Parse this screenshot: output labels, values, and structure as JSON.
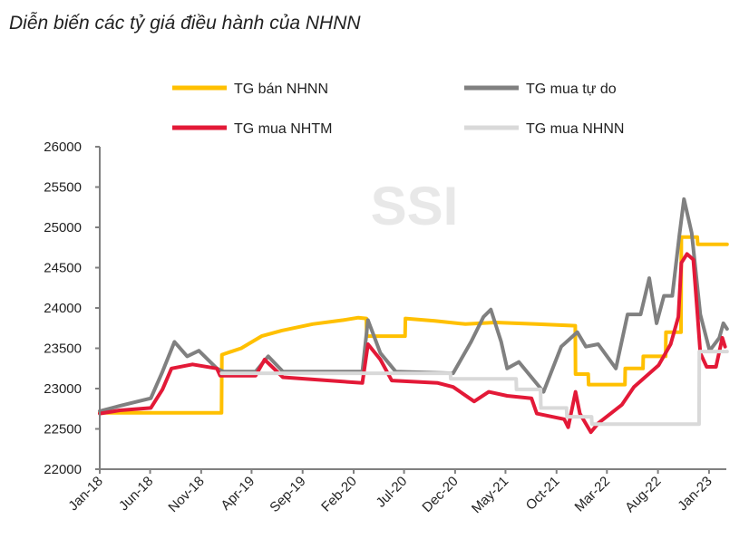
{
  "chart_data": {
    "type": "line",
    "title": "Diễn biến các tỷ giá điều hành của NHNN",
    "watermark": "SSI",
    "xlabel": "",
    "ylabel": "",
    "ylim": [
      22000,
      26000
    ],
    "yticks": [
      22000,
      22500,
      23000,
      23500,
      24000,
      24500,
      25000,
      25500,
      26000
    ],
    "xlim": [
      "2018-01-01",
      "2023-02-24"
    ],
    "xticks": [
      {
        "date": "2018-01-01",
        "label": "Jan-18"
      },
      {
        "date": "2018-06-01",
        "label": "Jun-18"
      },
      {
        "date": "2018-11-01",
        "label": "Nov-18"
      },
      {
        "date": "2019-04-01",
        "label": "Apr-19"
      },
      {
        "date": "2019-09-01",
        "label": "Sep-19"
      },
      {
        "date": "2020-02-01",
        "label": "Feb-20"
      },
      {
        "date": "2020-07-01",
        "label": "Jul-20"
      },
      {
        "date": "2020-12-01",
        "label": "Dec-20"
      },
      {
        "date": "2021-05-01",
        "label": "May-21"
      },
      {
        "date": "2021-10-01",
        "label": "Oct-21"
      },
      {
        "date": "2022-03-01",
        "label": "Mar-22"
      },
      {
        "date": "2022-08-01",
        "label": "Aug-22"
      },
      {
        "date": "2023-01-01",
        "label": "Jan-23"
      }
    ],
    "grid": false,
    "legend_placement": "top",
    "series": [
      {
        "name": "TG bán NHNN",
        "color": "#FFC000",
        "points": [
          [
            "2018-01-01",
            22700
          ],
          [
            "2019-01-01",
            22700
          ],
          [
            "2019-01-02",
            23420
          ],
          [
            "2019-03-01",
            23500
          ],
          [
            "2019-05-01",
            23650
          ],
          [
            "2019-07-01",
            23720
          ],
          [
            "2019-10-01",
            23800
          ],
          [
            "2020-01-01",
            23850
          ],
          [
            "2020-02-15",
            23880
          ],
          [
            "2020-03-10",
            23870
          ],
          [
            "2020-03-11",
            23650
          ],
          [
            "2020-07-04",
            23650
          ],
          [
            "2020-07-05",
            23870
          ],
          [
            "2020-10-01",
            23840
          ],
          [
            "2021-01-01",
            23800
          ],
          [
            "2021-04-01",
            23820
          ],
          [
            "2021-08-01",
            23800
          ],
          [
            "2021-11-26",
            23780
          ],
          [
            "2021-11-27",
            23180
          ],
          [
            "2022-01-04",
            23180
          ],
          [
            "2022-01-05",
            23050
          ],
          [
            "2022-04-24",
            23050
          ],
          [
            "2022-04-25",
            23250
          ],
          [
            "2022-06-17",
            23250
          ],
          [
            "2022-06-18",
            23400
          ],
          [
            "2022-08-24",
            23400
          ],
          [
            "2022-08-25",
            23700
          ],
          [
            "2022-10-09",
            23700
          ],
          [
            "2022-10-10",
            24880
          ],
          [
            "2022-11-27",
            24880
          ],
          [
            "2022-11-28",
            24790
          ],
          [
            "2023-02-24",
            24790
          ]
        ]
      },
      {
        "name": "TG mua tự do",
        "color": "#808080",
        "points": [
          [
            "2018-01-01",
            22720
          ],
          [
            "2018-01-10",
            22730
          ],
          [
            "2018-03-02",
            22785
          ],
          [
            "2018-06-03",
            22880
          ],
          [
            "2018-07-08",
            23210
          ],
          [
            "2018-08-13",
            23580
          ],
          [
            "2018-09-20",
            23400
          ],
          [
            "2018-10-25",
            23470
          ],
          [
            "2018-12-18",
            23250
          ],
          [
            "2019-01-07",
            23210
          ],
          [
            "2019-04-13",
            23210
          ],
          [
            "2019-05-21",
            23400
          ],
          [
            "2019-07-04",
            23210
          ],
          [
            "2020-02-27",
            23210
          ],
          [
            "2020-03-15",
            23850
          ],
          [
            "2020-04-21",
            23440
          ],
          [
            "2020-06-06",
            23210
          ],
          [
            "2020-11-25",
            23190
          ],
          [
            "2021-01-18",
            23580
          ],
          [
            "2021-02-24",
            23890
          ],
          [
            "2021-03-18",
            23980
          ],
          [
            "2021-04-18",
            23580
          ],
          [
            "2021-05-06",
            23250
          ],
          [
            "2021-06-10",
            23330
          ],
          [
            "2021-08-23",
            22960
          ],
          [
            "2021-10-15",
            23520
          ],
          [
            "2021-12-02",
            23700
          ],
          [
            "2021-12-28",
            23520
          ],
          [
            "2022-02-03",
            23550
          ],
          [
            "2022-03-28",
            23250
          ],
          [
            "2022-05-02",
            23920
          ],
          [
            "2022-06-10",
            23920
          ],
          [
            "2022-07-06",
            24370
          ],
          [
            "2022-07-28",
            23810
          ],
          [
            "2022-08-19",
            24150
          ],
          [
            "2022-09-13",
            24150
          ],
          [
            "2022-10-04",
            24900
          ],
          [
            "2022-10-18",
            25350
          ],
          [
            "2022-11-10",
            24930
          ],
          [
            "2022-12-06",
            23920
          ],
          [
            "2023-01-03",
            23470
          ],
          [
            "2023-02-01",
            23630
          ],
          [
            "2023-02-13",
            23810
          ],
          [
            "2023-02-24",
            23740
          ]
        ]
      },
      {
        "name": "TG mua NHTM",
        "color": "#E31937",
        "points": [
          [
            "2018-01-01",
            22690
          ],
          [
            "2018-03-02",
            22730
          ],
          [
            "2018-06-03",
            22760
          ],
          [
            "2018-07-08",
            22990
          ],
          [
            "2018-08-04",
            23250
          ],
          [
            "2018-10-06",
            23300
          ],
          [
            "2018-12-18",
            23250
          ],
          [
            "2018-12-28",
            23160
          ],
          [
            "2019-04-13",
            23160
          ],
          [
            "2019-05-10",
            23360
          ],
          [
            "2019-07-04",
            23140
          ],
          [
            "2020-02-27",
            23070
          ],
          [
            "2020-03-15",
            23550
          ],
          [
            "2020-04-21",
            23360
          ],
          [
            "2020-05-25",
            23100
          ],
          [
            "2020-10-10",
            23070
          ],
          [
            "2020-11-25",
            23020
          ],
          [
            "2021-01-27",
            22840
          ],
          [
            "2021-03-12",
            22960
          ],
          [
            "2021-05-06",
            22910
          ],
          [
            "2021-07-18",
            22880
          ],
          [
            "2021-08-03",
            22690
          ],
          [
            "2021-10-24",
            22620
          ],
          [
            "2021-11-05",
            22520
          ],
          [
            "2021-11-27",
            22960
          ],
          [
            "2021-12-10",
            22690
          ],
          [
            "2022-01-12",
            22460
          ],
          [
            "2022-02-03",
            22570
          ],
          [
            "2022-04-15",
            22800
          ],
          [
            "2022-05-21",
            23020
          ],
          [
            "2022-08-03",
            23290
          ],
          [
            "2022-09-08",
            23550
          ],
          [
            "2022-10-01",
            23890
          ],
          [
            "2022-10-10",
            24560
          ],
          [
            "2022-10-27",
            24670
          ],
          [
            "2022-11-15",
            24600
          ],
          [
            "2022-11-28",
            23890
          ],
          [
            "2022-12-06",
            23440
          ],
          [
            "2022-12-25",
            23270
          ],
          [
            "2023-01-22",
            23270
          ],
          [
            "2023-02-10",
            23630
          ],
          [
            "2023-02-18",
            23520
          ]
        ]
      },
      {
        "name": "TG mua NHNN",
        "color": "#D9D9D9",
        "points": [
          [
            "2019-01-01",
            23190
          ],
          [
            "2020-11-17",
            23190
          ],
          [
            "2020-11-18",
            23120
          ],
          [
            "2021-06-02",
            23120
          ],
          [
            "2021-06-03",
            22990
          ],
          [
            "2021-08-14",
            22990
          ],
          [
            "2021-08-15",
            22760
          ],
          [
            "2021-10-31",
            22760
          ],
          [
            "2021-11-01",
            22650
          ],
          [
            "2022-01-14",
            22650
          ],
          [
            "2022-01-15",
            22560
          ],
          [
            "2022-12-02",
            22560
          ],
          [
            "2022-12-03",
            23460
          ],
          [
            "2023-02-24",
            23460
          ]
        ]
      }
    ]
  }
}
